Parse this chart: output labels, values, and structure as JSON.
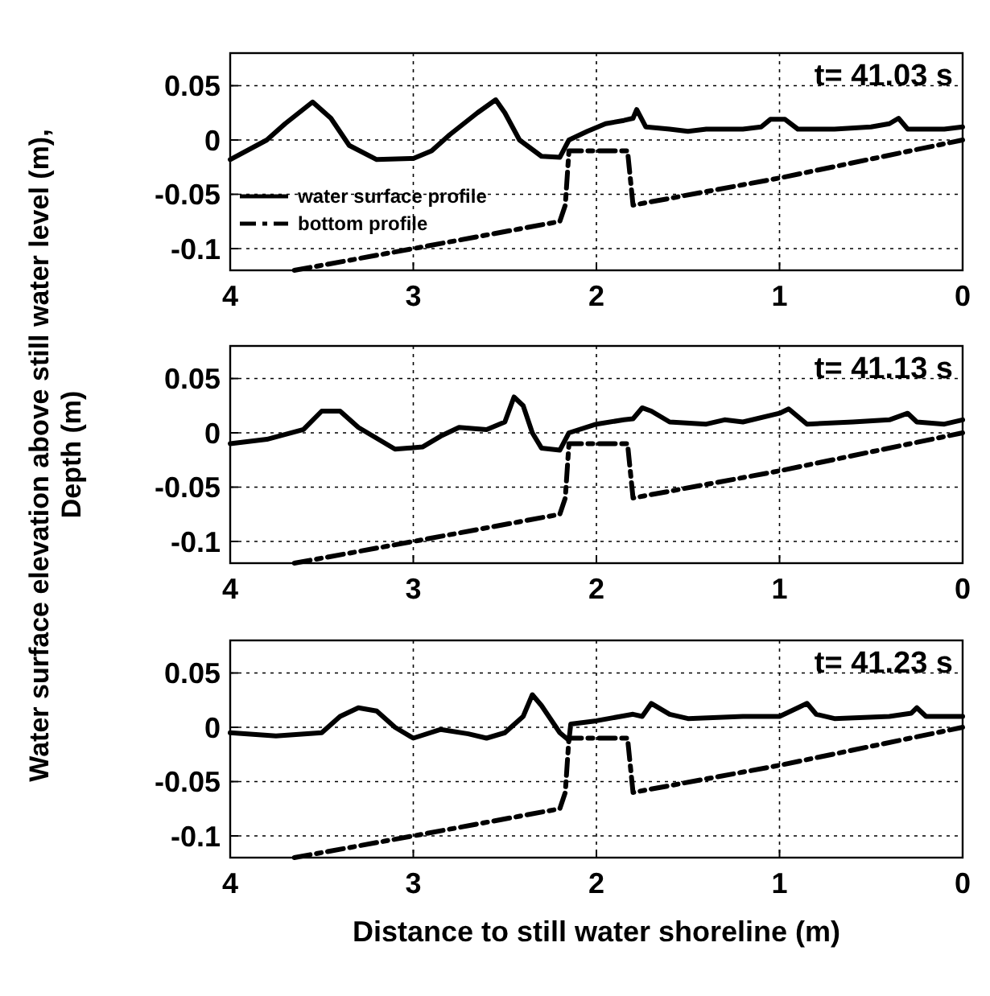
{
  "chart_data": [
    {
      "type": "line",
      "title": "t= 41.03 s",
      "ylabel": "Water surface elevation above still water level (m),",
      "xlim": [
        4,
        0
      ],
      "ylim": [
        -0.12,
        0.08
      ],
      "xticks": [
        4,
        3,
        2,
        1,
        0
      ],
      "yticks": [
        {
          "value": 0.05,
          "label": "0.05"
        },
        {
          "value": 0,
          "label": "0"
        },
        {
          "value": -0.05,
          "label": "-0.05"
        },
        {
          "value": -0.1,
          "label": "-0.1"
        }
      ],
      "grid": true,
      "legend": "bottom left",
      "series": [
        {
          "name": "water surface profile",
          "color": "#000000",
          "line_style": "solid",
          "x": [
            4,
            3.8,
            3.7,
            3.55,
            3.45,
            3.35,
            3.2,
            3.0,
            2.9,
            2.8,
            2.65,
            2.55,
            2.5,
            2.42,
            2.3,
            2.2,
            2.15,
            2.05,
            1.95,
            1.85,
            1.8,
            1.78,
            1.73,
            1.6,
            1.5,
            1.4,
            1.2,
            1.1,
            1.05,
            0.97,
            0.9,
            0.7,
            0.5,
            0.4,
            0.35,
            0.3,
            0.1,
            0
          ],
          "values": [
            -0.018,
            0.0,
            0.015,
            0.035,
            0.02,
            -0.005,
            -0.018,
            -0.017,
            -0.01,
            0.005,
            0.025,
            0.037,
            0.025,
            0,
            -0.015,
            -0.016,
            0.0,
            0.008,
            0.015,
            0.018,
            0.02,
            0.028,
            0.012,
            0.01,
            0.008,
            0.01,
            0.01,
            0.012,
            0.019,
            0.019,
            0.01,
            0.01,
            0.012,
            0.015,
            0.02,
            0.01,
            0.01,
            0.012
          ]
        },
        {
          "name": "bottom profile",
          "color": "#000000",
          "line_style": "dashed",
          "x": [
            3.65,
            3,
            2.2,
            2.17,
            2.15,
            1.83,
            1.8,
            1,
            0
          ],
          "values": [
            -0.12,
            -0.1,
            -0.075,
            -0.06,
            -0.01,
            -0.01,
            -0.06,
            -0.035,
            0
          ]
        }
      ]
    },
    {
      "type": "line",
      "title": "t= 41.13 s",
      "ylabel": "Depth (m)",
      "xlim": [
        4,
        0
      ],
      "ylim": [
        -0.12,
        0.08
      ],
      "xticks": [
        4,
        3,
        2,
        1,
        0
      ],
      "yticks": [
        {
          "value": 0.05,
          "label": "0.05"
        },
        {
          "value": 0,
          "label": "0"
        },
        {
          "value": -0.05,
          "label": "-0.05"
        },
        {
          "value": -0.1,
          "label": "-0.1"
        }
      ],
      "grid": true,
      "series": [
        {
          "color": "#000000",
          "line_style": "solid",
          "x": [
            4,
            3.8,
            3.6,
            3.5,
            3.4,
            3.3,
            3.1,
            2.95,
            2.85,
            2.75,
            2.6,
            2.5,
            2.45,
            2.4,
            2.35,
            2.3,
            2.2,
            2.15,
            2.0,
            1.85,
            1.8,
            1.75,
            1.7,
            1.6,
            1.4,
            1.3,
            1.2,
            1.0,
            0.95,
            0.9,
            0.85,
            0.6,
            0.4,
            0.3,
            0.25,
            0.1,
            0
          ],
          "values": [
            -0.01,
            -0.006,
            0.003,
            0.02,
            0.02,
            0.005,
            -0.015,
            -0.013,
            -0.003,
            0.005,
            0.003,
            0.01,
            0.033,
            0.025,
            0.0,
            -0.014,
            -0.016,
            0.0,
            0.008,
            0.012,
            0.013,
            0.023,
            0.02,
            0.01,
            0.008,
            0.012,
            0.01,
            0.018,
            0.022,
            0.015,
            0.008,
            0.01,
            0.012,
            0.018,
            0.01,
            0.008,
            0.012
          ]
        },
        {
          "color": "#000000",
          "line_style": "dashed",
          "x": [
            3.65,
            3,
            2.2,
            2.17,
            2.15,
            1.83,
            1.8,
            1,
            0
          ],
          "values": [
            -0.12,
            -0.1,
            -0.075,
            -0.06,
            -0.01,
            -0.01,
            -0.06,
            -0.035,
            0
          ]
        }
      ]
    },
    {
      "type": "line",
      "title": "t= 41.23 s",
      "xlabel": "Distance to still water shoreline (m)",
      "xlim": [
        4,
        0
      ],
      "ylim": [
        -0.12,
        0.08
      ],
      "xticks": [
        4,
        3,
        2,
        1,
        0
      ],
      "yticks": [
        {
          "value": 0.05,
          "label": "0.05"
        },
        {
          "value": 0,
          "label": "0"
        },
        {
          "value": -0.05,
          "label": "-0.05"
        },
        {
          "value": -0.1,
          "label": "-0.1"
        }
      ],
      "grid": true,
      "series": [
        {
          "color": "#000000",
          "line_style": "solid",
          "x": [
            4,
            3.75,
            3.5,
            3.4,
            3.3,
            3.2,
            3.1,
            3.0,
            2.85,
            2.7,
            2.6,
            2.5,
            2.4,
            2.35,
            2.3,
            2.2,
            2.15,
            2.14,
            2.0,
            1.8,
            1.75,
            1.7,
            1.6,
            1.5,
            1.2,
            1.0,
            0.9,
            0.85,
            0.8,
            0.7,
            0.4,
            0.28,
            0.25,
            0.2,
            0
          ],
          "values": [
            -0.005,
            -0.008,
            -0.005,
            0.01,
            0.018,
            0.015,
            0.0,
            -0.01,
            -0.002,
            -0.006,
            -0.01,
            -0.005,
            0.01,
            0.03,
            0.02,
            -0.005,
            -0.012,
            0.003,
            0.006,
            0.012,
            0.01,
            0.022,
            0.012,
            0.008,
            0.01,
            0.01,
            0.018,
            0.022,
            0.012,
            0.008,
            0.01,
            0.013,
            0.018,
            0.01,
            0.01
          ]
        },
        {
          "color": "#000000",
          "line_style": "dashed",
          "x": [
            3.65,
            3,
            2.2,
            2.17,
            2.15,
            1.83,
            1.8,
            1,
            0
          ],
          "values": [
            -0.12,
            -0.1,
            -0.075,
            -0.06,
            -0.01,
            -0.01,
            -0.06,
            -0.035,
            0
          ]
        }
      ]
    }
  ]
}
